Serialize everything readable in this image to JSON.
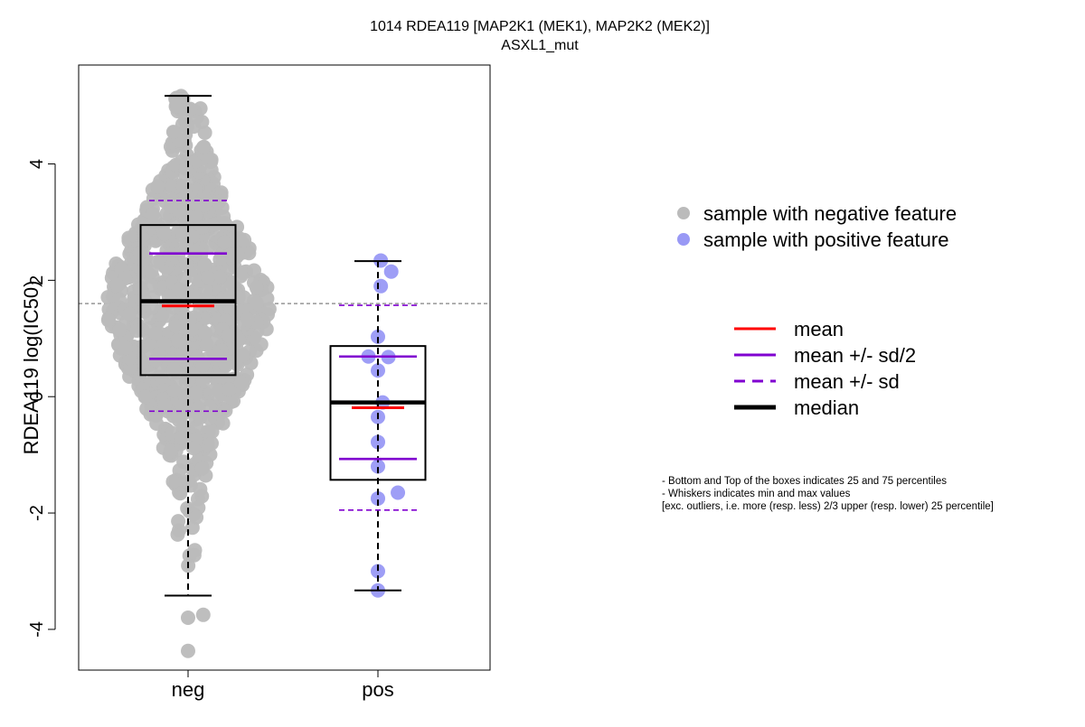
{
  "chart_data": {
    "type": "scatter",
    "title": "1014 RDEA119 [MAP2K1 (MEK1), MAP2K2 (MEK2)]",
    "subtitle": "ASXL1_mut",
    "ylabel": "RDEA119 log(IC50)",
    "xlabel": "",
    "categories": [
      "neg",
      "pos"
    ],
    "ylim": [
      -4.7,
      5.7
    ],
    "yticks": [
      -4,
      -2,
      0,
      2,
      4
    ],
    "grid": false,
    "reference_line": {
      "y": 1.6,
      "style": "dashed",
      "color": "#808080"
    },
    "series": [
      {
        "name": "sample with negative feature",
        "category": "neg",
        "color": "#BBBBBB",
        "n_points": 900,
        "point_spread": 1.58,
        "box": {
          "q1": 0.37,
          "median": 1.64,
          "q3": 2.95,
          "whisker_low": -3.42,
          "whisker_high": 5.17
        },
        "mean": 1.56,
        "mean_plus_half_sd": 2.46,
        "mean_minus_half_sd": 0.65,
        "mean_plus_sd": 3.37,
        "mean_minus_sd": -0.25,
        "outliers": [
          -3.8,
          -3.75,
          -4.37
        ]
      },
      {
        "name": "sample with positive feature",
        "category": "pos",
        "color": "#9999F5",
        "box": {
          "q1": -1.43,
          "median": -0.1,
          "q3": 0.87,
          "whisker_low": -3.33,
          "whisker_high": 2.33
        },
        "mean": -0.19,
        "mean_plus_half_sd": 0.69,
        "mean_minus_half_sd": -1.07,
        "mean_plus_sd": 1.57,
        "mean_minus_sd": -1.95,
        "points": [
          {
            "x": 0.03,
            "y": 2.34
          },
          {
            "x": 0.14,
            "y": 2.15
          },
          {
            "x": 0.03,
            "y": 1.9
          },
          {
            "x": 0.0,
            "y": 1.03
          },
          {
            "x": -0.1,
            "y": 0.69
          },
          {
            "x": 0.11,
            "y": 0.68
          },
          {
            "x": 0.0,
            "y": 0.45
          },
          {
            "x": 0.05,
            "y": -0.1
          },
          {
            "x": 0.0,
            "y": -0.35
          },
          {
            "x": 0.0,
            "y": -0.78
          },
          {
            "x": 0.0,
            "y": -1.2
          },
          {
            "x": 0.21,
            "y": -1.65
          },
          {
            "x": 0.0,
            "y": -1.75
          },
          {
            "x": 0.0,
            "y": -3.0
          },
          {
            "x": 0.0,
            "y": -3.33
          }
        ]
      }
    ],
    "legend_points": {
      "placement": "right",
      "entries": [
        {
          "label": "sample with negative feature",
          "color": "#BBBBBB"
        },
        {
          "label": "sample with positive feature",
          "color": "#9999F5"
        }
      ]
    },
    "legend_lines": {
      "placement": "right",
      "entries": [
        {
          "label": "mean",
          "color": "#FF0000",
          "style": "solid"
        },
        {
          "label": "mean +/- sd/2",
          "color": "#8000D0",
          "style": "solid"
        },
        {
          "label": "mean +/- sd",
          "color": "#8000D0",
          "style": "dashed"
        },
        {
          "label": "median",
          "color": "#000000",
          "style": "solid-thick"
        }
      ]
    },
    "notes": [
      "- Bottom and Top of the boxes indicates 25 and 75 percentiles",
      "- Whiskers indicates min and max values",
      "[exc. outliers, i.e. more (resp. less) 2/3 upper (resp. lower) 25 percentile]"
    ]
  }
}
